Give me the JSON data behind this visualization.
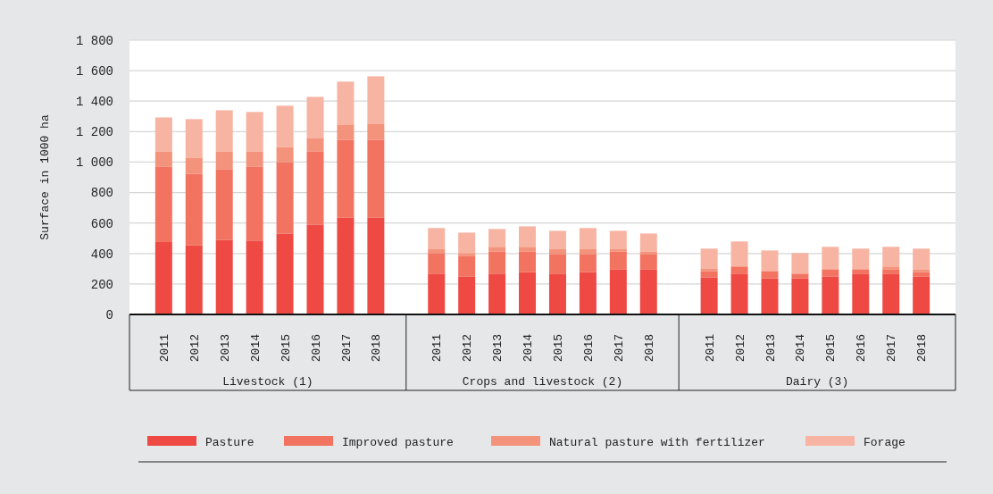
{
  "chart_data": {
    "type": "bar",
    "stacked": true,
    "ylabel": "Surface in 1000 ha",
    "categories": [
      "2011",
      "2012",
      "2013",
      "2014",
      "2015",
      "2016",
      "2017",
      "2018",
      null,
      "2011",
      "2012",
      "2013",
      "2014",
      "2015",
      "2016",
      "2017",
      "2018",
      null,
      "2011",
      "2012",
      "2013",
      "2014",
      "2015",
      "2016",
      "2017",
      "2018"
    ],
    "annotations": [
      "Livestock (1)",
      "Crops and livestock (2)",
      "Dairy (3)"
    ],
    "series": [
      {
        "name": "Pasture",
        "color": "#ee4a43",
        "values": [
          475,
          455,
          490,
          485,
          531,
          590,
          637,
          637,
          null,
          268,
          250,
          268,
          279,
          268,
          279,
          297,
          297,
          null,
          244,
          268,
          238,
          238,
          250,
          268,
          268,
          250
        ]
      },
      {
        "name": "Improved pasture",
        "color": "#f27360",
        "values": [
          496,
          469,
          464,
          486,
          469,
          481,
          510,
          510,
          null,
          135,
          135,
          146,
          135,
          129,
          118,
          117,
          100,
          null,
          41,
          47,
          47,
          30,
          47,
          29,
          29,
          29
        ]
      },
      {
        "name": "Natural pasture with fertilizer",
        "color": "#f4937b",
        "values": [
          100,
          106,
          117,
          100,
          100,
          88,
          100,
          106,
          null,
          29,
          18,
          30,
          30,
          35,
          35,
          18,
          17,
          null,
          18,
          0,
          0,
          0,
          0,
          0,
          18,
          18
        ]
      },
      {
        "name": "Forage",
        "color": "#f8b4a2",
        "values": [
          222,
          252,
          269,
          258,
          270,
          269,
          281,
          310,
          null,
          135,
          134,
          117,
          134,
          117,
          135,
          117,
          117,
          null,
          129,
          164,
          135,
          135,
          147,
          135,
          129,
          135
        ]
      }
    ],
    "ylim": [
      0,
      1800
    ],
    "yticks": [
      0,
      200,
      400,
      600,
      800,
      {
        "value": 1000,
        "label": "1 000"
      },
      {
        "value": 1200,
        "label": "1 200"
      },
      {
        "value": 1400,
        "label": "1 400"
      },
      {
        "value": 1600,
        "label": "1 600"
      },
      {
        "value": 1800,
        "label": "1 800"
      }
    ],
    "grid": "y",
    "legend": "bottom"
  }
}
